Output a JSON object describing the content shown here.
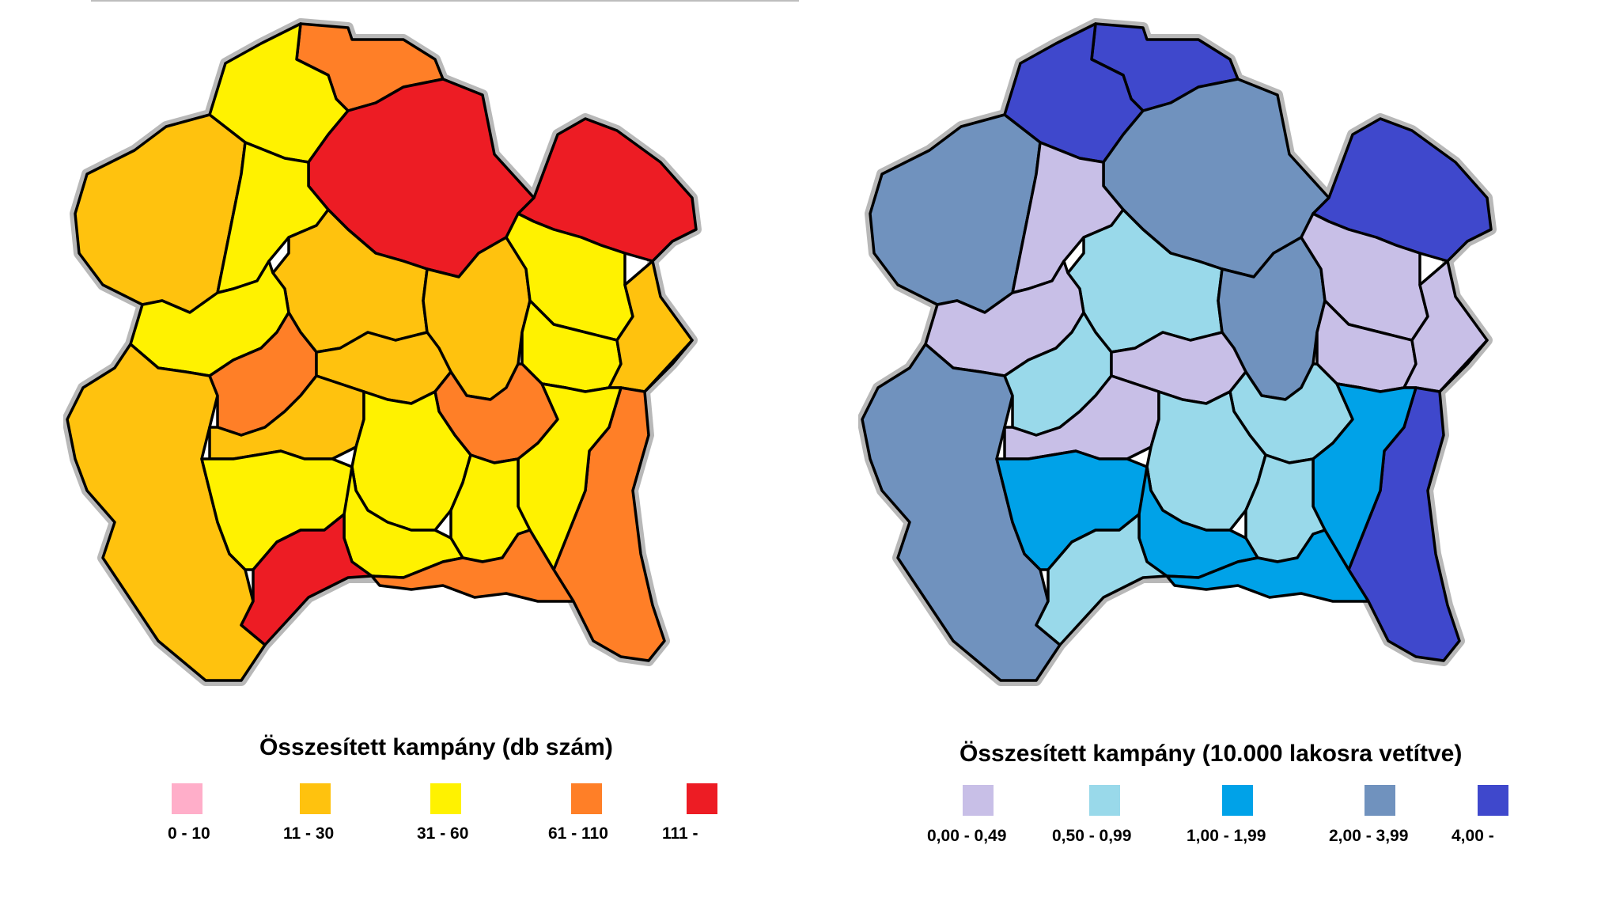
{
  "maps": [
    {
      "id": "left",
      "title": "Összesített kampány (db szám)",
      "legend": [
        {
          "label": "0 - 10",
          "color": "#ffaec9"
        },
        {
          "label": "11 - 30",
          "color": "#ffc20e"
        },
        {
          "label": "31 - 60",
          "color": "#fff200"
        },
        {
          "label": "61 - 110",
          "color": "#ff7f27"
        },
        {
          "label": "111 -",
          "color": "#ed1c24"
        }
      ],
      "region_classes": [
        3,
        2,
        4,
        1,
        4,
        2,
        1,
        1,
        2,
        2,
        2,
        1,
        3,
        1,
        3,
        1,
        3,
        2,
        1,
        2,
        2,
        2,
        2,
        4,
        3
      ]
    },
    {
      "id": "right",
      "title": "Összesített kampány (10.000 lakosra vetítve)",
      "legend": [
        {
          "label": "0,00 - 0,49",
          "color": "#c8bfe7"
        },
        {
          "label": "0,50 - 0,99",
          "color": "#99d9ea"
        },
        {
          "label": "1,00 - 1,99",
          "color": "#00a2e8"
        },
        {
          "label": "2,00 - 3,99",
          "color": "#7092be"
        },
        {
          "label": "4,00 -",
          "color": "#3f48cc"
        }
      ],
      "region_classes": [
        4,
        4,
        3,
        3,
        4,
        0,
        1,
        3,
        0,
        0,
        0,
        0,
        4,
        3,
        1,
        0,
        1,
        2,
        0,
        1,
        2,
        1,
        2,
        1,
        2
      ]
    }
  ]
}
